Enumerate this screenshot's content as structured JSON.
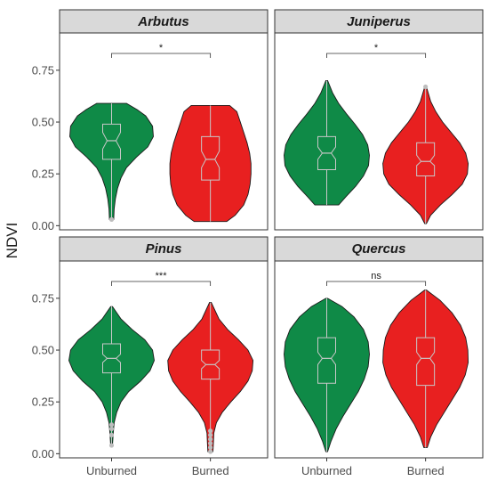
{
  "chart_data": {
    "type": "violin",
    "ylabel": "NDVI",
    "xlabel": "",
    "categories": [
      "Unburned",
      "Burned"
    ],
    "yticks": [
      "0.00",
      "0.25",
      "0.50",
      "0.75"
    ],
    "ylim": [
      -0.02,
      0.93
    ],
    "colors": {
      "Unburned": "#0f8a47",
      "Burned": "#e82020",
      "box": "#c8c8c8",
      "strip": "#d9d9d9"
    },
    "panels": [
      {
        "title": "Arbutus",
        "significance": "*",
        "groups": [
          {
            "name": "Unburned",
            "min": 0.03,
            "max": 0.59,
            "q1": 0.32,
            "median": 0.41,
            "q3": 0.49,
            "notch": [
              0.37,
              0.45
            ],
            "outliers": [
              0.03
            ],
            "density": [
              [
                0.03,
                0.05
              ],
              [
                0.08,
                0.06
              ],
              [
                0.13,
                0.09
              ],
              [
                0.18,
                0.14
              ],
              [
                0.23,
                0.22
              ],
              [
                0.28,
                0.35
              ],
              [
                0.33,
                0.58
              ],
              [
                0.38,
                0.85
              ],
              [
                0.43,
                0.98
              ],
              [
                0.48,
                0.96
              ],
              [
                0.53,
                0.8
              ],
              [
                0.56,
                0.6
              ],
              [
                0.59,
                0.35
              ]
            ]
          },
          {
            "name": "Burned",
            "min": 0.02,
            "max": 0.58,
            "q1": 0.22,
            "median": 0.32,
            "q3": 0.43,
            "notch": [
              0.28,
              0.36
            ],
            "outliers": [],
            "density": [
              [
                0.02,
                0.38
              ],
              [
                0.05,
                0.58
              ],
              [
                0.1,
                0.78
              ],
              [
                0.15,
                0.88
              ],
              [
                0.2,
                0.93
              ],
              [
                0.25,
                0.95
              ],
              [
                0.3,
                0.95
              ],
              [
                0.35,
                0.92
              ],
              [
                0.4,
                0.86
              ],
              [
                0.45,
                0.78
              ],
              [
                0.5,
                0.7
              ],
              [
                0.55,
                0.62
              ],
              [
                0.58,
                0.45
              ]
            ]
          }
        ]
      },
      {
        "title": "Juniperus",
        "significance": "*",
        "groups": [
          {
            "name": "Unburned",
            "min": 0.1,
            "max": 0.7,
            "q1": 0.27,
            "median": 0.35,
            "q3": 0.43,
            "notch": [
              0.32,
              0.38
            ],
            "outliers": [],
            "density": [
              [
                0.1,
                0.28
              ],
              [
                0.14,
                0.45
              ],
              [
                0.19,
                0.68
              ],
              [
                0.24,
                0.86
              ],
              [
                0.29,
                0.98
              ],
              [
                0.34,
                1.0
              ],
              [
                0.39,
                0.96
              ],
              [
                0.44,
                0.84
              ],
              [
                0.49,
                0.66
              ],
              [
                0.54,
                0.46
              ],
              [
                0.59,
                0.28
              ],
              [
                0.64,
                0.14
              ],
              [
                0.7,
                0.02
              ]
            ]
          },
          {
            "name": "Burned",
            "min": 0.01,
            "max": 0.67,
            "q1": 0.24,
            "median": 0.31,
            "q3": 0.4,
            "notch": [
              0.29,
              0.34
            ],
            "outliers": [
              0.67
            ],
            "density": [
              [
                0.01,
                0.02
              ],
              [
                0.05,
                0.12
              ],
              [
                0.1,
                0.35
              ],
              [
                0.15,
                0.62
              ],
              [
                0.2,
                0.86
              ],
              [
                0.25,
                0.98
              ],
              [
                0.3,
                1.0
              ],
              [
                0.35,
                0.94
              ],
              [
                0.4,
                0.8
              ],
              [
                0.45,
                0.6
              ],
              [
                0.5,
                0.4
              ],
              [
                0.55,
                0.24
              ],
              [
                0.6,
                0.12
              ],
              [
                0.67,
                0.02
              ]
            ]
          }
        ]
      },
      {
        "title": "Pinus",
        "significance": "***",
        "groups": [
          {
            "name": "Unburned",
            "min": 0.04,
            "max": 0.71,
            "q1": 0.39,
            "median": 0.46,
            "q3": 0.53,
            "notch": [
              0.44,
              0.48
            ],
            "outliers": [
              0.04,
              0.09,
              0.12,
              0.14
            ],
            "density": [
              [
                0.04,
                0.02
              ],
              [
                0.1,
                0.04
              ],
              [
                0.15,
                0.06
              ],
              [
                0.2,
                0.12
              ],
              [
                0.25,
                0.22
              ],
              [
                0.3,
                0.4
              ],
              [
                0.35,
                0.68
              ],
              [
                0.4,
                0.9
              ],
              [
                0.45,
                1.0
              ],
              [
                0.5,
                0.96
              ],
              [
                0.55,
                0.78
              ],
              [
                0.6,
                0.48
              ],
              [
                0.65,
                0.22
              ],
              [
                0.71,
                0.02
              ]
            ]
          },
          {
            "name": "Burned",
            "min": 0.01,
            "max": 0.73,
            "q1": 0.36,
            "median": 0.43,
            "q3": 0.5,
            "notch": [
              0.41,
              0.45
            ],
            "outliers": [
              0.01,
              0.03,
              0.05,
              0.07,
              0.09,
              0.11
            ],
            "density": [
              [
                0.01,
                0.06
              ],
              [
                0.05,
                0.07
              ],
              [
                0.1,
                0.08
              ],
              [
                0.15,
                0.14
              ],
              [
                0.2,
                0.28
              ],
              [
                0.25,
                0.48
              ],
              [
                0.3,
                0.7
              ],
              [
                0.35,
                0.88
              ],
              [
                0.4,
                0.98
              ],
              [
                0.45,
                1.0
              ],
              [
                0.5,
                0.88
              ],
              [
                0.55,
                0.66
              ],
              [
                0.6,
                0.4
              ],
              [
                0.65,
                0.2
              ],
              [
                0.73,
                0.02
              ]
            ]
          }
        ]
      },
      {
        "title": "Quercus",
        "significance": "ns",
        "groups": [
          {
            "name": "Unburned",
            "min": 0.01,
            "max": 0.75,
            "q1": 0.34,
            "median": 0.46,
            "q3": 0.56,
            "notch": [
              0.43,
              0.49
            ],
            "outliers": [],
            "density": [
              [
                0.01,
                0.02
              ],
              [
                0.06,
                0.1
              ],
              [
                0.12,
                0.22
              ],
              [
                0.18,
                0.38
              ],
              [
                0.24,
                0.56
              ],
              [
                0.3,
                0.74
              ],
              [
                0.36,
                0.88
              ],
              [
                0.42,
                0.97
              ],
              [
                0.48,
                1.0
              ],
              [
                0.54,
                0.97
              ],
              [
                0.6,
                0.86
              ],
              [
                0.66,
                0.64
              ],
              [
                0.71,
                0.36
              ],
              [
                0.75,
                0.02
              ]
            ]
          },
          {
            "name": "Burned",
            "min": 0.03,
            "max": 0.79,
            "q1": 0.33,
            "median": 0.46,
            "q3": 0.56,
            "notch": [
              0.43,
              0.49
            ],
            "outliers": [],
            "density": [
              [
                0.03,
                0.04
              ],
              [
                0.08,
                0.12
              ],
              [
                0.14,
                0.26
              ],
              [
                0.2,
                0.44
              ],
              [
                0.26,
                0.62
              ],
              [
                0.32,
                0.8
              ],
              [
                0.38,
                0.93
              ],
              [
                0.44,
                1.0
              ],
              [
                0.5,
                0.99
              ],
              [
                0.56,
                0.94
              ],
              [
                0.62,
                0.82
              ],
              [
                0.68,
                0.62
              ],
              [
                0.74,
                0.34
              ],
              [
                0.79,
                0.02
              ]
            ]
          }
        ]
      }
    ]
  }
}
